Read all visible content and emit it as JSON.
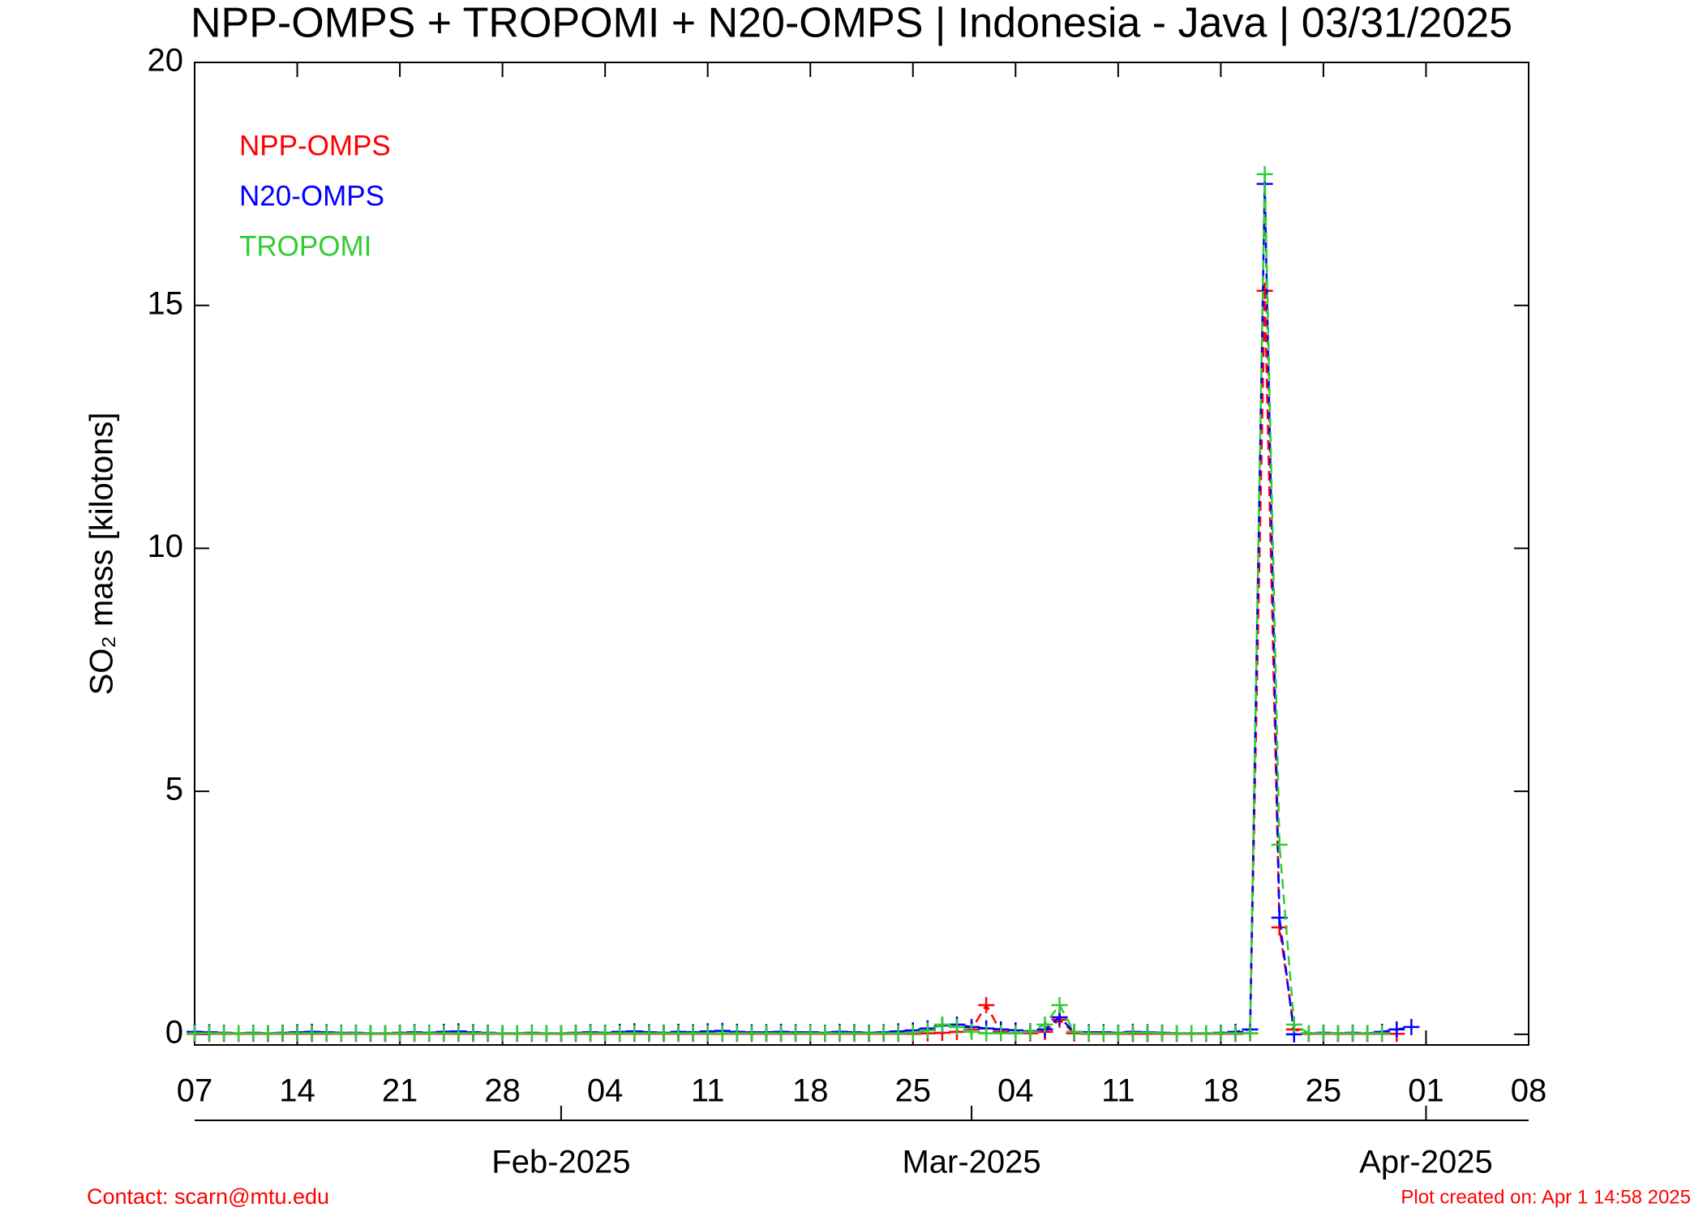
{
  "chart_data": {
    "type": "line",
    "title": "NPP-OMPS + TROPOMI + N20-OMPS | Indonesia - Java | 03/31/2025",
    "y_label": "SO₂ mass [kilotons]",
    "contact": "Contact: scarn@mtu.edu",
    "created": "Plot created on: Apr  1 14:58 2025",
    "x": [
      "2025-01-07",
      "2025-01-08",
      "2025-01-09",
      "2025-01-10",
      "2025-01-11",
      "2025-01-12",
      "2025-01-13",
      "2025-01-14",
      "2025-01-15",
      "2025-01-16",
      "2025-01-17",
      "2025-01-18",
      "2025-01-19",
      "2025-01-20",
      "2025-01-21",
      "2025-01-22",
      "2025-01-23",
      "2025-01-24",
      "2025-01-25",
      "2025-01-26",
      "2025-01-27",
      "2025-01-28",
      "2025-01-29",
      "2025-01-30",
      "2025-01-31",
      "2025-02-01",
      "2025-02-02",
      "2025-02-03",
      "2025-02-04",
      "2025-02-05",
      "2025-02-06",
      "2025-02-07",
      "2025-02-08",
      "2025-02-09",
      "2025-02-10",
      "2025-02-11",
      "2025-02-12",
      "2025-02-13",
      "2025-02-14",
      "2025-02-15",
      "2025-02-16",
      "2025-02-17",
      "2025-02-18",
      "2025-02-19",
      "2025-02-20",
      "2025-02-21",
      "2025-02-22",
      "2025-02-23",
      "2025-02-24",
      "2025-02-25",
      "2025-02-26",
      "2025-02-27",
      "2025-02-28",
      "2025-03-01",
      "2025-03-02",
      "2025-03-03",
      "2025-03-04",
      "2025-03-05",
      "2025-03-06",
      "2025-03-07",
      "2025-03-08",
      "2025-03-09",
      "2025-03-10",
      "2025-03-11",
      "2025-03-12",
      "2025-03-13",
      "2025-03-14",
      "2025-03-15",
      "2025-03-16",
      "2025-03-17",
      "2025-03-18",
      "2025-03-19",
      "2025-03-20",
      "2025-03-21",
      "2025-03-22",
      "2025-03-23",
      "2025-03-24",
      "2025-03-25",
      "2025-03-26",
      "2025-03-27",
      "2025-03-28",
      "2025-03-29",
      "2025-03-30",
      "2025-03-31"
    ],
    "series": [
      {
        "name": "NPP-OMPS",
        "color": "#ff0000",
        "values": [
          0.01,
          0.01,
          0.01,
          0.01,
          0.01,
          0.01,
          0.01,
          0.01,
          0.01,
          0.01,
          0.01,
          0.01,
          0.01,
          0.01,
          0.01,
          0.01,
          0.01,
          0.01,
          0.01,
          0.01,
          0.01,
          0.01,
          0.01,
          0.01,
          0.01,
          0.01,
          0.01,
          0.01,
          0.01,
          0.01,
          0.01,
          0.01,
          0.01,
          0.01,
          0.01,
          0.01,
          0.01,
          0.01,
          0.01,
          0.01,
          0.01,
          0.01,
          0.01,
          0.01,
          0.01,
          0.01,
          0.01,
          0.01,
          0.01,
          0.01,
          0.02,
          0.03,
          0.05,
          0.1,
          0.6,
          0.05,
          0.02,
          0.02,
          0.05,
          0.3,
          0.02,
          0.01,
          0.01,
          0.01,
          0.01,
          0.01,
          0.01,
          0.01,
          0.01,
          0.01,
          0.01,
          0.01,
          0.02,
          15.3,
          2.2,
          0.1,
          0.01,
          0.01,
          0.01,
          0.01,
          0.01,
          0.01,
          0.01,
          null
        ]
      },
      {
        "name": "N20-OMPS",
        "color": "#0000ff",
        "values": [
          0.05,
          0.04,
          0.03,
          0.02,
          0.03,
          0.02,
          0.03,
          0.04,
          0.05,
          0.04,
          0.03,
          0.03,
          0.02,
          0.02,
          0.03,
          0.04,
          0.03,
          0.05,
          0.06,
          0.04,
          0.03,
          0.02,
          0.02,
          0.03,
          0.02,
          0.02,
          0.03,
          0.04,
          0.03,
          0.05,
          0.06,
          0.04,
          0.03,
          0.05,
          0.04,
          0.06,
          0.07,
          0.05,
          0.04,
          0.04,
          0.05,
          0.04,
          0.04,
          0.03,
          0.05,
          0.04,
          0.03,
          0.04,
          0.06,
          0.08,
          0.12,
          0.18,
          0.2,
          0.15,
          0.12,
          0.1,
          0.08,
          0.06,
          0.1,
          0.35,
          0.05,
          0.04,
          0.04,
          0.03,
          0.05,
          0.04,
          0.03,
          0.02,
          0.02,
          0.02,
          0.03,
          0.05,
          0.1,
          17.5,
          2.4,
          0.0,
          0.02,
          0.03,
          0.02,
          0.03,
          0.02,
          0.05,
          0.1,
          0.15
        ]
      },
      {
        "name": "TROPOMI",
        "color": "#33cc33",
        "values": [
          0.02,
          0.02,
          0.02,
          0.02,
          0.02,
          0.02,
          0.02,
          0.02,
          0.02,
          0.02,
          0.02,
          0.02,
          0.02,
          0.02,
          0.02,
          0.02,
          0.02,
          0.02,
          0.02,
          0.02,
          0.02,
          0.02,
          0.02,
          0.02,
          0.02,
          0.02,
          0.02,
          0.02,
          0.02,
          0.02,
          0.02,
          0.02,
          0.02,
          0.02,
          0.02,
          0.02,
          0.02,
          0.02,
          0.02,
          0.02,
          0.02,
          0.02,
          0.02,
          0.02,
          0.02,
          0.02,
          0.02,
          0.02,
          0.02,
          0.03,
          0.08,
          0.2,
          0.15,
          0.05,
          0.02,
          0.02,
          0.02,
          0.05,
          0.2,
          0.6,
          0.05,
          0.02,
          0.02,
          0.02,
          0.03,
          0.03,
          0.02,
          0.02,
          0.02,
          0.02,
          0.02,
          0.02,
          0.02,
          17.7,
          3.9,
          0.2,
          0.02,
          0.02,
          0.02,
          0.02,
          0.02,
          0.02,
          null,
          null
        ]
      }
    ],
    "xlim": [
      "2025-01-07",
      "2025-04-08"
    ],
    "xticks": [
      {
        "value": "2025-01-07",
        "label": "07"
      },
      {
        "value": "2025-01-14",
        "label": "14"
      },
      {
        "value": "2025-01-21",
        "label": "21"
      },
      {
        "value": "2025-01-28",
        "label": "28"
      },
      {
        "value": "2025-02-04",
        "label": "04"
      },
      {
        "value": "2025-02-11",
        "label": "11"
      },
      {
        "value": "2025-02-18",
        "label": "18"
      },
      {
        "value": "2025-02-25",
        "label": "25"
      },
      {
        "value": "2025-03-04",
        "label": "04"
      },
      {
        "value": "2025-03-11",
        "label": "11"
      },
      {
        "value": "2025-03-18",
        "label": "18"
      },
      {
        "value": "2025-03-25",
        "label": "25"
      },
      {
        "value": "2025-04-01",
        "label": "01"
      },
      {
        "value": "2025-04-08",
        "label": "08"
      }
    ],
    "month_ticks": [
      {
        "value": "2025-02-01",
        "label": "Feb-2025"
      },
      {
        "value": "2025-03-01",
        "label": "Mar-2025"
      },
      {
        "value": "2025-04-01",
        "label": "Apr-2025"
      }
    ],
    "ylim": [
      -0.22,
      20
    ],
    "yticks": [
      0,
      5,
      10,
      15,
      20
    ],
    "legend": "upper left"
  }
}
